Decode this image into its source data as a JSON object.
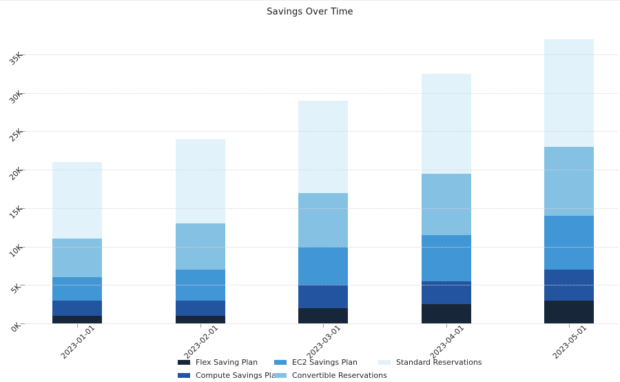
{
  "chart_data": {
    "type": "bar",
    "stacked": true,
    "title": "Savings Over Time",
    "categories": [
      "2023-01-01",
      "2023-02-01",
      "2023-03-01",
      "2023-04-01",
      "2023-05-01"
    ],
    "series": [
      {
        "name": "Flex Saving Plan",
        "color": "#182639",
        "values": [
          1000,
          1000,
          2000,
          2500,
          3000
        ]
      },
      {
        "name": "Compute Savings Plan",
        "color": "#2254a0",
        "values": [
          2000,
          2000,
          3000,
          3000,
          4000
        ]
      },
      {
        "name": "EC2 Savings Plan",
        "color": "#4197d5",
        "values": [
          3000,
          4000,
          5000,
          6000,
          7000
        ]
      },
      {
        "name": "Convertible Reservations",
        "color": "#85c1e3",
        "values": [
          5000,
          6000,
          7000,
          8000,
          9000
        ]
      },
      {
        "name": "Standard Reservations",
        "color": "#e2f2fb",
        "values": [
          10000,
          11000,
          12000,
          13000,
          14000
        ]
      }
    ],
    "stack_totals": [
      21000,
      24000,
      29000,
      32500,
      37000
    ],
    "xlabel": "",
    "ylabel": "",
    "y_ticks": [
      {
        "label": "0K",
        "value": 0
      },
      {
        "label": "5K",
        "value": 5000
      },
      {
        "label": "10K",
        "value": 10000
      },
      {
        "label": "15K",
        "value": 15000
      },
      {
        "label": "20K",
        "value": 20000
      },
      {
        "label": "25K",
        "value": 25000
      },
      {
        "label": "30K",
        "value": 30000
      },
      {
        "label": "35K",
        "value": 35000
      }
    ],
    "ylim": [
      0,
      38500
    ],
    "grid": "horizontal-dotted",
    "tick_rotation_deg": 45,
    "legend_position": "bottom",
    "colors": {
      "background": "#ffffff",
      "gridline": "#d4d4d4",
      "tick": "#9a9a9a",
      "text": "#262626"
    }
  }
}
